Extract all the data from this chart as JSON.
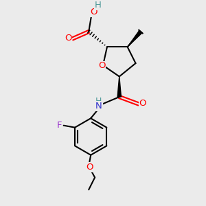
{
  "bg_color": "#ebebeb",
  "bond_color": "#000000",
  "atom_colors": {
    "O": "#ff0000",
    "N": "#3333cc",
    "F": "#9933cc",
    "H": "#4d9999",
    "C": "#000000"
  },
  "figsize": [
    3.0,
    3.0
  ],
  "dpi": 100
}
